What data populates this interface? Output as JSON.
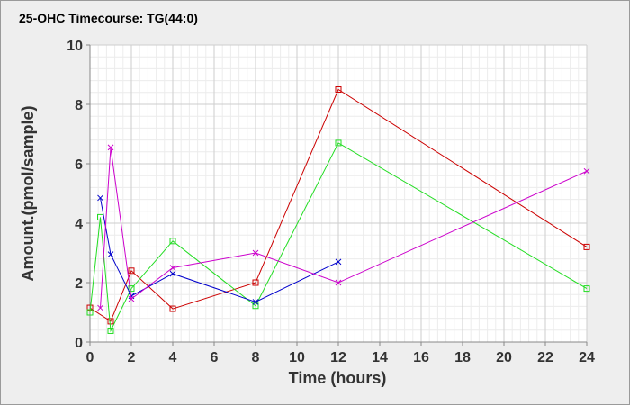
{
  "chart_data": {
    "type": "line",
    "title": "25-OHC Timecourse: TG(44:0)",
    "xlabel": "Time (hours)",
    "ylabel": "Amount.(pmol/sample)",
    "xlim": [
      0,
      24
    ],
    "ylim": [
      0,
      10
    ],
    "x_ticks": [
      0,
      2,
      4,
      6,
      8,
      10,
      12,
      14,
      16,
      18,
      20,
      22,
      24
    ],
    "y_ticks": [
      0,
      2,
      4,
      6,
      8,
      10
    ],
    "grid": true,
    "series": [
      {
        "color": "#cc0000",
        "marker": "square",
        "points": [
          [
            0,
            1.15
          ],
          [
            1,
            0.7
          ],
          [
            2,
            2.4
          ],
          [
            4,
            1.12
          ],
          [
            8,
            2.0
          ],
          [
            12,
            8.5
          ],
          [
            24,
            3.2
          ]
        ]
      },
      {
        "color": "#22dd22",
        "marker": "square",
        "points": [
          [
            0,
            1.0
          ],
          [
            0.5,
            4.2
          ],
          [
            1,
            0.38
          ],
          [
            2,
            1.8
          ],
          [
            4,
            3.4
          ],
          [
            8,
            1.22
          ],
          [
            12,
            6.7
          ],
          [
            24,
            1.8
          ]
        ]
      },
      {
        "color": "#0000cc",
        "marker": "x",
        "points": [
          [
            0.5,
            4.85
          ],
          [
            1,
            2.95
          ],
          [
            2,
            1.55
          ],
          [
            4,
            2.3
          ],
          [
            8,
            1.35
          ],
          [
            12,
            2.7
          ]
        ]
      },
      {
        "color": "#cc00cc",
        "marker": "x",
        "points": [
          [
            0.5,
            1.15
          ],
          [
            1,
            6.55
          ],
          [
            2,
            1.45
          ],
          [
            4,
            2.5
          ],
          [
            8,
            3.0
          ],
          [
            12,
            2.0
          ],
          [
            24,
            5.75
          ]
        ]
      }
    ]
  }
}
